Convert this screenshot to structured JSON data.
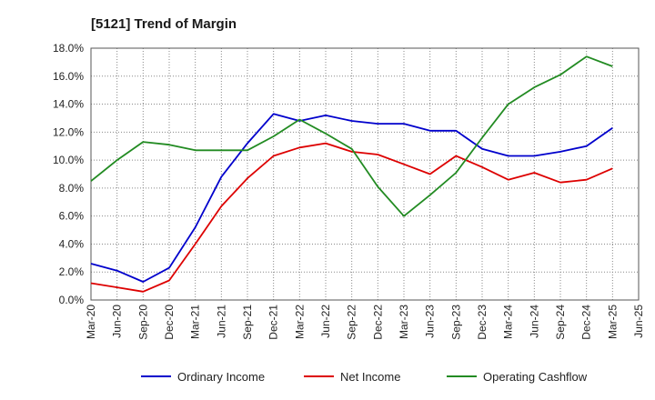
{
  "chart_data": {
    "type": "line",
    "title": "[5121]  Trend of Margin",
    "xlabel": "",
    "ylabel": "",
    "categories": [
      "Mar-20",
      "Jun-20",
      "Sep-20",
      "Dec-20",
      "Mar-21",
      "Jun-21",
      "Sep-21",
      "Dec-21",
      "Mar-22",
      "Jun-22",
      "Sep-22",
      "Dec-22",
      "Mar-23",
      "Jun-23",
      "Sep-23",
      "Dec-23",
      "Mar-24",
      "Jun-24",
      "Sep-24",
      "Dec-24",
      "Mar-25",
      "Jun-25"
    ],
    "y_ticks": [
      "0.0%",
      "2.0%",
      "4.0%",
      "6.0%",
      "8.0%",
      "10.0%",
      "12.0%",
      "14.0%",
      "16.0%",
      "18.0%"
    ],
    "ylim": [
      0,
      18
    ],
    "grid": true,
    "legend_position": "bottom",
    "series": [
      {
        "name": "Ordinary Income",
        "color": "#0000cc",
        "values": [
          2.6,
          2.1,
          1.3,
          2.3,
          5.2,
          8.8,
          11.2,
          13.3,
          12.8,
          13.2,
          12.8,
          12.6,
          12.6,
          12.1,
          12.1,
          10.8,
          10.3,
          10.3,
          10.6,
          11.0,
          12.3,
          null
        ]
      },
      {
        "name": "Net Income",
        "color": "#dd0000",
        "values": [
          1.2,
          0.9,
          0.6,
          1.4,
          4.0,
          6.7,
          8.7,
          10.3,
          10.9,
          11.2,
          10.6,
          10.4,
          9.7,
          9.0,
          10.3,
          9.5,
          8.6,
          9.1,
          8.4,
          8.6,
          9.4,
          null
        ]
      },
      {
        "name": "Operating Cashflow",
        "color": "#228b22",
        "values": [
          8.5,
          10.0,
          11.3,
          11.1,
          10.7,
          10.7,
          10.7,
          11.7,
          12.9,
          11.9,
          10.8,
          8.1,
          6.0,
          7.5,
          9.1,
          11.6,
          14.0,
          15.2,
          16.1,
          17.4,
          16.7,
          null
        ]
      }
    ]
  }
}
